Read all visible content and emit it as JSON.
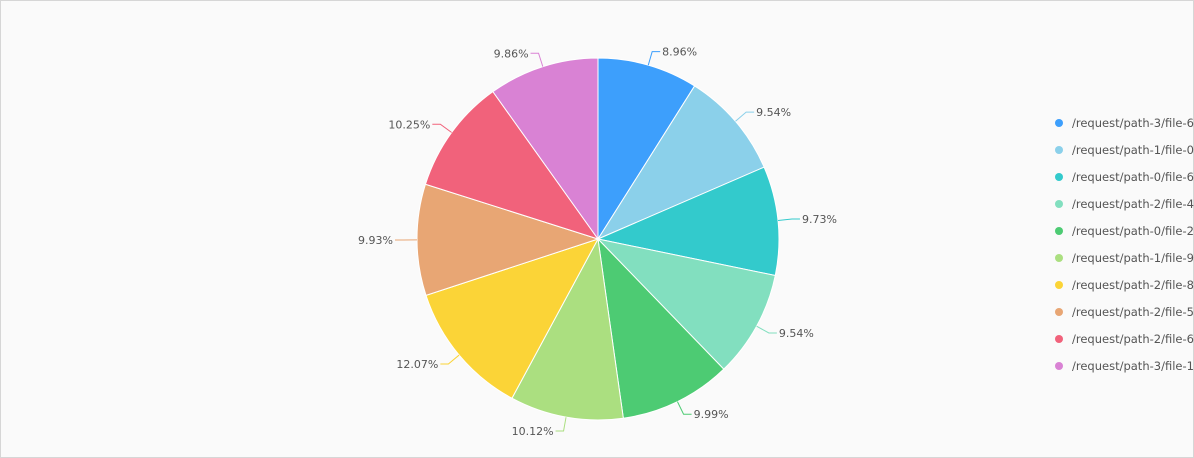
{
  "chart_data": {
    "type": "pie",
    "slices": [
      {
        "label": "/request/path-3/file-6",
        "value": 8.96,
        "display": "8.96%",
        "color": "#3d9ffc"
      },
      {
        "label": "/request/path-1/file-0",
        "value": 9.54,
        "display": "9.54%",
        "color": "#8bd0ea"
      },
      {
        "label": "/request/path-0/file-6",
        "value": 9.73,
        "display": "9.73%",
        "color": "#33cacc"
      },
      {
        "label": "/request/path-2/file-4",
        "value": 9.54,
        "display": "9.54%",
        "color": "#82dfbf"
      },
      {
        "label": "/request/path-0/file-2",
        "value": 9.99,
        "display": "9.99%",
        "color": "#4dcb73"
      },
      {
        "label": "/request/path-1/file-9",
        "value": 10.12,
        "display": "10.12%",
        "color": "#abdf80"
      },
      {
        "label": "/request/path-2/file-8",
        "value": 12.07,
        "display": "12.07%",
        "color": "#fbd437"
      },
      {
        "label": "/request/path-2/file-5",
        "value": 9.93,
        "display": "9.93%",
        "color": "#e8a674"
      },
      {
        "label": "/request/path-2/file-6",
        "value": 10.25,
        "display": "10.25%",
        "color": "#f1627b"
      },
      {
        "label": "/request/path-3/file-1",
        "value": 9.86,
        "display": "9.86%",
        "color": "#d982d4"
      }
    ],
    "legend_position": "right"
  }
}
